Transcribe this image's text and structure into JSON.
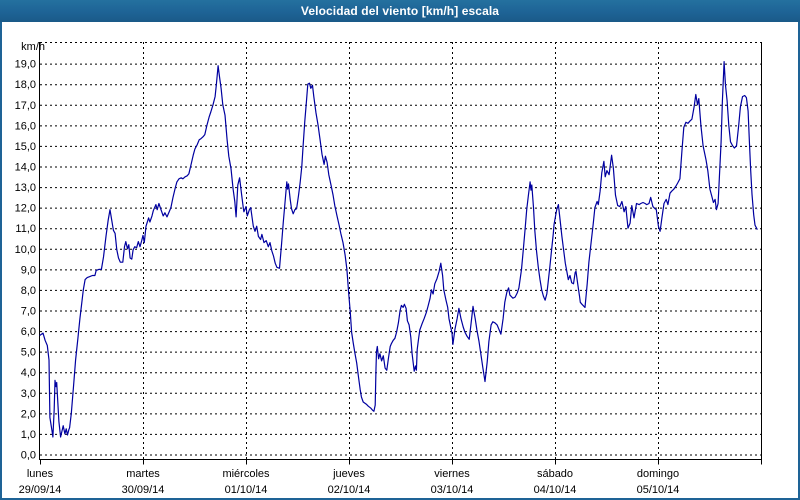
{
  "title": "Velocidad del viento [km/h] escala",
  "colors": {
    "titlebar": "#1e6396",
    "window_border": "#1e6396",
    "line": "#0000a0",
    "grid": "#000000",
    "text": "#000000",
    "background": "#ffffff"
  },
  "y_axis": {
    "unit_label": "km/h",
    "min": 0,
    "max": 19,
    "step": 1,
    "labels": [
      "19,0",
      "18,0",
      "17,0",
      "16,0",
      "15,0",
      "14,0",
      "13,0",
      "12,0",
      "11,0",
      "10,0",
      "9,0",
      "8,0",
      "7,0",
      "6,0",
      "5,0",
      "4,0",
      "3,0",
      "2,0",
      "1,0",
      "0,0"
    ]
  },
  "x_axis": {
    "days": [
      {
        "name": "lunes",
        "date": "29/09/14"
      },
      {
        "name": "martes",
        "date": "30/09/14"
      },
      {
        "name": "miércoles",
        "date": "01/10/14"
      },
      {
        "name": "jueves",
        "date": "02/10/14"
      },
      {
        "name": "viernes",
        "date": "03/10/14"
      },
      {
        "name": "sábado",
        "date": "04/10/14"
      },
      {
        "name": "domingo",
        "date": "05/10/14"
      }
    ]
  },
  "chart_data": {
    "type": "line",
    "title": "Velocidad del viento [km/h] escala",
    "ylabel": "km/h",
    "xlabel": "",
    "ylim": [
      0,
      20
    ],
    "x_unit": "hours since lunes 29/09/14 00:00",
    "x_range": [
      0,
      168
    ],
    "grid": true,
    "legend_position": "none",
    "series_name": "Velocidad del viento (km/h)",
    "points": [
      [
        0,
        5.8
      ],
      [
        0.7,
        5.9
      ],
      [
        1.2,
        5.55
      ],
      [
        1.7,
        5.3
      ],
      [
        2.1,
        4.6
      ],
      [
        2.3,
        1.8
      ],
      [
        2.8,
        1.15
      ],
      [
        3.0,
        0.85
      ],
      [
        3.3,
        2.2
      ],
      [
        3.5,
        3.6
      ],
      [
        3.7,
        3.3
      ],
      [
        3.9,
        3.5
      ],
      [
        4.4,
        1.6
      ],
      [
        4.8,
        0.85
      ],
      [
        5.4,
        1.4
      ],
      [
        5.8,
        1.0
      ],
      [
        6.1,
        1.25
      ],
      [
        6.4,
        0.95
      ],
      [
        6.7,
        1.2
      ],
      [
        6.9,
        1.3
      ],
      [
        7.3,
        2.0
      ],
      [
        7.8,
        3.3
      ],
      [
        8.3,
        4.6
      ],
      [
        8.8,
        5.6
      ],
      [
        9.3,
        6.6
      ],
      [
        9.8,
        7.5
      ],
      [
        10.1,
        8.0
      ],
      [
        10.5,
        8.5
      ],
      [
        11.0,
        8.6
      ],
      [
        11.6,
        8.65
      ],
      [
        12.2,
        8.7
      ],
      [
        12.8,
        8.7
      ],
      [
        13.1,
        8.95
      ],
      [
        13.7,
        9.0
      ],
      [
        14.3,
        9.0
      ],
      [
        14.8,
        9.6
      ],
      [
        15.4,
        10.65
      ],
      [
        15.9,
        11.4
      ],
      [
        16.3,
        11.9
      ],
      [
        16.7,
        11.4
      ],
      [
        17.1,
        10.9
      ],
      [
        17.5,
        10.75
      ],
      [
        17.9,
        9.95
      ],
      [
        18.3,
        9.55
      ],
      [
        18.7,
        9.35
      ],
      [
        19.3,
        9.35
      ],
      [
        19.7,
        10.1
      ],
      [
        20.0,
        10.35
      ],
      [
        20.4,
        10.0
      ],
      [
        20.7,
        10.2
      ],
      [
        21.0,
        9.55
      ],
      [
        21.4,
        9.5
      ],
      [
        21.7,
        9.95
      ],
      [
        22.1,
        10.1
      ],
      [
        22.5,
        10.05
      ],
      [
        22.9,
        10.35
      ],
      [
        23.3,
        10.1
      ],
      [
        23.7,
        10.4
      ],
      [
        24.0,
        10.65
      ],
      [
        24.3,
        10.3
      ],
      [
        24.7,
        11.1
      ],
      [
        25.3,
        11.5
      ],
      [
        25.6,
        11.3
      ],
      [
        26.1,
        11.6
      ],
      [
        26.4,
        11.85
      ],
      [
        27.0,
        12.15
      ],
      [
        27.3,
        11.9
      ],
      [
        27.7,
        12.2
      ],
      [
        28.2,
        11.9
      ],
      [
        28.7,
        11.6
      ],
      [
        29.1,
        11.75
      ],
      [
        29.6,
        11.55
      ],
      [
        30.1,
        11.8
      ],
      [
        30.5,
        12.0
      ],
      [
        31.0,
        12.5
      ],
      [
        31.5,
        12.95
      ],
      [
        31.9,
        13.25
      ],
      [
        32.4,
        13.4
      ],
      [
        32.9,
        13.45
      ],
      [
        33.3,
        13.4
      ],
      [
        33.8,
        13.5
      ],
      [
        34.3,
        13.55
      ],
      [
        34.7,
        13.65
      ],
      [
        35.2,
        14.1
      ],
      [
        35.7,
        14.55
      ],
      [
        36.1,
        14.85
      ],
      [
        36.6,
        15.05
      ],
      [
        37.1,
        15.3
      ],
      [
        37.5,
        15.35
      ],
      [
        38.0,
        15.45
      ],
      [
        38.4,
        15.55
      ],
      [
        38.9,
        16.0
      ],
      [
        39.4,
        16.4
      ],
      [
        39.8,
        16.65
      ],
      [
        40.3,
        17.0
      ],
      [
        40.8,
        17.4
      ],
      [
        41.1,
        18.0
      ],
      [
        41.5,
        18.9
      ],
      [
        41.8,
        18.4
      ],
      [
        42.2,
        17.8
      ],
      [
        42.6,
        17.0
      ],
      [
        43.1,
        16.5
      ],
      [
        43.6,
        15.3
      ],
      [
        44.0,
        14.5
      ],
      [
        44.5,
        13.9
      ],
      [
        45.0,
        12.9
      ],
      [
        45.4,
        12.3
      ],
      [
        45.7,
        11.55
      ],
      [
        46.1,
        13.1
      ],
      [
        46.5,
        13.45
      ],
      [
        47.0,
        12.6
      ],
      [
        47.4,
        11.95
      ],
      [
        47.5,
        11.8
      ],
      [
        48.0,
        12.05
      ],
      [
        48.3,
        11.6
      ],
      [
        48.8,
        11.9
      ],
      [
        49.1,
        12.0
      ],
      [
        49.7,
        11.1
      ],
      [
        50.1,
        10.85
      ],
      [
        50.5,
        11.1
      ],
      [
        50.9,
        10.6
      ],
      [
        51.4,
        10.45
      ],
      [
        51.7,
        10.7
      ],
      [
        52.2,
        10.3
      ],
      [
        52.7,
        10.4
      ],
      [
        53.2,
        10.1
      ],
      [
        53.6,
        10.3
      ],
      [
        54.0,
        9.9
      ],
      [
        54.4,
        9.65
      ],
      [
        54.8,
        9.3
      ],
      [
        55.2,
        9.1
      ],
      [
        55.8,
        9.05
      ],
      [
        56.3,
        10.25
      ],
      [
        56.7,
        11.3
      ],
      [
        57.1,
        12.3
      ],
      [
        57.5,
        13.25
      ],
      [
        57.7,
        12.9
      ],
      [
        57.9,
        13.15
      ],
      [
        58.3,
        12.4
      ],
      [
        58.6,
        11.95
      ],
      [
        59.0,
        11.7
      ],
      [
        59.4,
        11.9
      ],
      [
        59.8,
        11.95
      ],
      [
        60.2,
        12.55
      ],
      [
        60.6,
        13.2
      ],
      [
        61.0,
        14.0
      ],
      [
        61.3,
        15.0
      ],
      [
        61.7,
        16.2
      ],
      [
        62.1,
        17.2
      ],
      [
        62.4,
        18.0
      ],
      [
        62.8,
        18.05
      ],
      [
        63.1,
        17.8
      ],
      [
        63.5,
        17.95
      ],
      [
        63.8,
        17.4
      ],
      [
        64.3,
        16.6
      ],
      [
        64.8,
        16.0
      ],
      [
        65.2,
        15.4
      ],
      [
        65.7,
        14.6
      ],
      [
        66.2,
        14.1
      ],
      [
        66.5,
        14.5
      ],
      [
        66.9,
        14.2
      ],
      [
        67.3,
        13.6
      ],
      [
        67.8,
        13.1
      ],
      [
        68.3,
        12.6
      ],
      [
        68.7,
        12.1
      ],
      [
        69.2,
        11.6
      ],
      [
        69.7,
        11.15
      ],
      [
        70.1,
        10.75
      ],
      [
        70.6,
        10.3
      ],
      [
        71.1,
        9.7
      ],
      [
        71.5,
        9.0
      ],
      [
        71.9,
        7.9
      ],
      [
        72.3,
        6.9
      ],
      [
        72.6,
        5.95
      ],
      [
        73.0,
        5.4
      ],
      [
        73.4,
        4.9
      ],
      [
        73.8,
        4.45
      ],
      [
        74.2,
        3.8
      ],
      [
        74.6,
        3.15
      ],
      [
        74.9,
        2.8
      ],
      [
        75.3,
        2.55
      ],
      [
        76.0,
        2.45
      ],
      [
        76.5,
        2.35
      ],
      [
        77.1,
        2.25
      ],
      [
        77.5,
        2.15
      ],
      [
        77.8,
        2.1
      ],
      [
        78.1,
        2.4
      ],
      [
        78.3,
        4.2
      ],
      [
        78.4,
        5.0
      ],
      [
        78.6,
        5.25
      ],
      [
        78.9,
        4.65
      ],
      [
        79.2,
        4.9
      ],
      [
        79.6,
        4.55
      ],
      [
        80.0,
        4.8
      ],
      [
        80.4,
        4.2
      ],
      [
        80.8,
        4.1
      ],
      [
        81.2,
        4.7
      ],
      [
        81.6,
        5.25
      ],
      [
        81.9,
        5.4
      ],
      [
        82.3,
        5.55
      ],
      [
        82.7,
        5.65
      ],
      [
        83.1,
        5.95
      ],
      [
        83.5,
        6.4
      ],
      [
        83.9,
        7.0
      ],
      [
        84.2,
        7.25
      ],
      [
        84.6,
        7.15
      ],
      [
        84.9,
        7.3
      ],
      [
        85.3,
        7.1
      ],
      [
        85.6,
        6.5
      ],
      [
        86.0,
        6.3
      ],
      [
        86.4,
        5.7
      ],
      [
        86.7,
        4.9
      ],
      [
        87.2,
        4.05
      ],
      [
        87.5,
        4.3
      ],
      [
        87.7,
        4.1
      ],
      [
        87.9,
        5.1
      ],
      [
        88.2,
        5.6
      ],
      [
        88.5,
        6.05
      ],
      [
        89.0,
        6.35
      ],
      [
        89.5,
        6.6
      ],
      [
        90.0,
        6.9
      ],
      [
        90.4,
        7.2
      ],
      [
        90.9,
        7.6
      ],
      [
        91.2,
        8.0
      ],
      [
        91.6,
        7.8
      ],
      [
        92.0,
        8.3
      ],
      [
        92.5,
        8.55
      ],
      [
        93.0,
        8.9
      ],
      [
        93.4,
        9.3
      ],
      [
        93.8,
        8.7
      ],
      [
        94.1,
        8.0
      ],
      [
        94.6,
        7.5
      ],
      [
        95.0,
        7.15
      ],
      [
        95.3,
        6.6
      ],
      [
        95.7,
        6.2
      ],
      [
        96.0,
        5.9
      ],
      [
        96.2,
        5.35
      ],
      [
        96.7,
        6.1
      ],
      [
        97.2,
        6.6
      ],
      [
        97.6,
        7.1
      ],
      [
        98.1,
        6.6
      ],
      [
        98.6,
        6.2
      ],
      [
        99.0,
        5.95
      ],
      [
        99.5,
        5.75
      ],
      [
        100.0,
        5.6
      ],
      [
        100.4,
        6.3
      ],
      [
        100.9,
        7.2
      ],
      [
        101.4,
        6.6
      ],
      [
        101.8,
        6.05
      ],
      [
        102.3,
        5.5
      ],
      [
        102.7,
        4.9
      ],
      [
        103.2,
        4.2
      ],
      [
        103.7,
        3.55
      ],
      [
        104.2,
        4.5
      ],
      [
        104.6,
        5.5
      ],
      [
        105.1,
        6.3
      ],
      [
        105.5,
        6.45
      ],
      [
        106.0,
        6.4
      ],
      [
        106.5,
        6.3
      ],
      [
        106.9,
        6.1
      ],
      [
        107.4,
        5.85
      ],
      [
        107.9,
        6.6
      ],
      [
        108.3,
        7.4
      ],
      [
        108.8,
        7.9
      ],
      [
        109.2,
        8.1
      ],
      [
        109.5,
        7.75
      ],
      [
        110.2,
        7.6
      ],
      [
        110.7,
        7.65
      ],
      [
        111.2,
        7.85
      ],
      [
        111.6,
        8.1
      ],
      [
        112.2,
        9.0
      ],
      [
        112.6,
        9.9
      ],
      [
        113.0,
        10.9
      ],
      [
        113.4,
        11.9
      ],
      [
        113.8,
        12.6
      ],
      [
        114.2,
        13.25
      ],
      [
        114.4,
        12.85
      ],
      [
        114.6,
        13.1
      ],
      [
        115.0,
        12.0
      ],
      [
        115.3,
        10.9
      ],
      [
        115.7,
        9.9
      ],
      [
        116.1,
        9.1
      ],
      [
        116.5,
        8.5
      ],
      [
        116.9,
        8.0
      ],
      [
        117.3,
        7.7
      ],
      [
        117.7,
        7.5
      ],
      [
        118.1,
        7.8
      ],
      [
        118.4,
        8.35
      ],
      [
        118.8,
        9.15
      ],
      [
        119.2,
        9.95
      ],
      [
        119.6,
        10.75
      ],
      [
        119.8,
        11.2
      ],
      [
        120.4,
        11.9
      ],
      [
        120.8,
        12.15
      ],
      [
        121.2,
        11.4
      ],
      [
        121.6,
        10.6
      ],
      [
        122.0,
        9.95
      ],
      [
        122.4,
        9.3
      ],
      [
        122.8,
        8.85
      ],
      [
        123.1,
        8.5
      ],
      [
        123.5,
        8.7
      ],
      [
        123.9,
        8.35
      ],
      [
        124.3,
        8.3
      ],
      [
        124.7,
        8.85
      ],
      [
        124.9,
        8.9
      ],
      [
        125.3,
        8.3
      ],
      [
        125.7,
        7.7
      ],
      [
        125.9,
        7.4
      ],
      [
        126.3,
        7.3
      ],
      [
        127.0,
        7.15
      ],
      [
        127.5,
        8.3
      ],
      [
        127.9,
        9.35
      ],
      [
        128.4,
        10.3
      ],
      [
        128.9,
        11.2
      ],
      [
        129.3,
        12.0
      ],
      [
        129.8,
        12.3
      ],
      [
        130.1,
        12.15
      ],
      [
        130.5,
        12.8
      ],
      [
        130.9,
        13.7
      ],
      [
        131.4,
        14.25
      ],
      [
        131.7,
        13.5
      ],
      [
        132.1,
        13.8
      ],
      [
        132.6,
        13.6
      ],
      [
        133.2,
        14.55
      ],
      [
        133.6,
        13.9
      ],
      [
        134.1,
        12.6
      ],
      [
        134.6,
        12.1
      ],
      [
        135.1,
        12.05
      ],
      [
        135.6,
        12.3
      ],
      [
        136.1,
        11.8
      ],
      [
        136.5,
        12.05
      ],
      [
        137.0,
        11.0
      ],
      [
        137.5,
        11.25
      ],
      [
        137.9,
        12.1
      ],
      [
        138.4,
        11.5
      ],
      [
        139.0,
        12.2
      ],
      [
        139.6,
        12.15
      ],
      [
        140.0,
        12.2
      ],
      [
        140.5,
        12.25
      ],
      [
        141.0,
        12.2
      ],
      [
        141.4,
        12.15
      ],
      [
        141.9,
        12.2
      ],
      [
        142.3,
        12.5
      ],
      [
        142.8,
        12.05
      ],
      [
        143.3,
        11.95
      ],
      [
        143.6,
        11.9
      ],
      [
        144.1,
        11.1
      ],
      [
        144.5,
        10.85
      ],
      [
        144.9,
        11.5
      ],
      [
        145.4,
        12.2
      ],
      [
        145.9,
        12.4
      ],
      [
        146.3,
        12.15
      ],
      [
        146.8,
        12.7
      ],
      [
        147.2,
        12.8
      ],
      [
        147.7,
        12.9
      ],
      [
        148.2,
        13.05
      ],
      [
        148.6,
        13.2
      ],
      [
        149.1,
        13.4
      ],
      [
        149.6,
        14.8
      ],
      [
        150.0,
        15.9
      ],
      [
        150.5,
        16.15
      ],
      [
        151.0,
        16.1
      ],
      [
        151.4,
        16.2
      ],
      [
        151.9,
        16.3
      ],
      [
        152.4,
        16.9
      ],
      [
        152.8,
        17.5
      ],
      [
        153.2,
        17.0
      ],
      [
        153.5,
        17.3
      ],
      [
        154.0,
        16.0
      ],
      [
        154.5,
        15.0
      ],
      [
        155.2,
        14.3
      ],
      [
        155.6,
        13.8
      ],
      [
        156.1,
        12.9
      ],
      [
        156.6,
        12.5
      ],
      [
        156.9,
        12.25
      ],
      [
        157.3,
        12.4
      ],
      [
        157.6,
        11.9
      ],
      [
        158.0,
        12.2
      ],
      [
        158.3,
        13.5
      ],
      [
        158.7,
        15.2
      ],
      [
        159.0,
        17.2
      ],
      [
        159.4,
        19.1
      ],
      [
        159.7,
        18.0
      ],
      [
        160.1,
        17.2
      ],
      [
        160.5,
        16.0
      ],
      [
        160.9,
        15.2
      ],
      [
        161.4,
        15.0
      ],
      [
        161.8,
        14.9
      ],
      [
        162.3,
        15.0
      ],
      [
        162.8,
        16.0
      ],
      [
        163.2,
        16.9
      ],
      [
        163.7,
        17.4
      ],
      [
        164.2,
        17.45
      ],
      [
        164.6,
        17.35
      ],
      [
        165.0,
        16.7
      ],
      [
        165.3,
        15.2
      ],
      [
        165.6,
        13.8
      ],
      [
        165.9,
        12.65
      ],
      [
        166.3,
        11.65
      ],
      [
        166.6,
        11.15
      ],
      [
        167.1,
        10.95
      ]
    ]
  }
}
